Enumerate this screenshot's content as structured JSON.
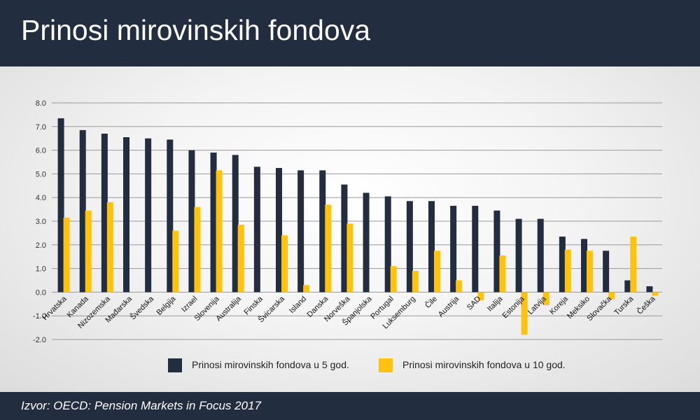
{
  "title": "Prinosi mirovinskih fondova",
  "source": "Izvor: OECD: Pension Markets in Focus 2017",
  "colors": {
    "header_bg": "#232d40",
    "series_5y": "#232d40",
    "series_10y": "#ffc20e"
  },
  "chart_data": {
    "type": "bar",
    "title": "",
    "xlabel": "",
    "ylabel": "",
    "ylim": [
      -2.0,
      8.0
    ],
    "yticks": [
      "8.0",
      "7.0",
      "6.0",
      "5.0",
      "4.0",
      "3.0",
      "2.0",
      "1.0",
      "0.0",
      "-1.0",
      "-2.0"
    ],
    "grid": true,
    "legend_position": "bottom",
    "categories": [
      "Hrvatska",
      "Kanada",
      "Nizozemska",
      "Mađarska",
      "Švedska",
      "Belgija",
      "Izrael",
      "Slovenija",
      "Australija",
      "Finska",
      "Švicarska",
      "Island",
      "Danska",
      "Norveška",
      "Španjolska",
      "Portugal",
      "Luksemburg",
      "Čile",
      "Austrija",
      "SAD",
      "Italija",
      "Estonija",
      "Latvija",
      "Koreja",
      "Meksiko",
      "Slovačka",
      "Turska",
      "Češka"
    ],
    "series": [
      {
        "name": "Prinosi mirovinskih fondova u 5 god.",
        "color": "#232d40",
        "values": [
          7.35,
          6.85,
          6.7,
          6.55,
          6.5,
          6.45,
          6.0,
          5.9,
          5.8,
          5.3,
          5.25,
          5.15,
          5.15,
          4.55,
          4.2,
          4.05,
          3.85,
          3.85,
          3.65,
          3.65,
          3.45,
          3.1,
          3.1,
          2.35,
          2.25,
          1.75,
          0.5,
          0.25
        ]
      },
      {
        "name": "Prinosi mirovinskih fondova u 10 god.",
        "color": "#ffc20e",
        "values": [
          3.15,
          3.45,
          3.8,
          null,
          null,
          2.6,
          3.6,
          5.15,
          2.85,
          null,
          2.4,
          0.3,
          3.7,
          2.9,
          null,
          1.1,
          0.9,
          1.75,
          0.5,
          -0.35,
          1.55,
          -1.8,
          -0.55,
          1.8,
          1.75,
          -0.3,
          2.35,
          -0.15
        ]
      }
    ]
  }
}
